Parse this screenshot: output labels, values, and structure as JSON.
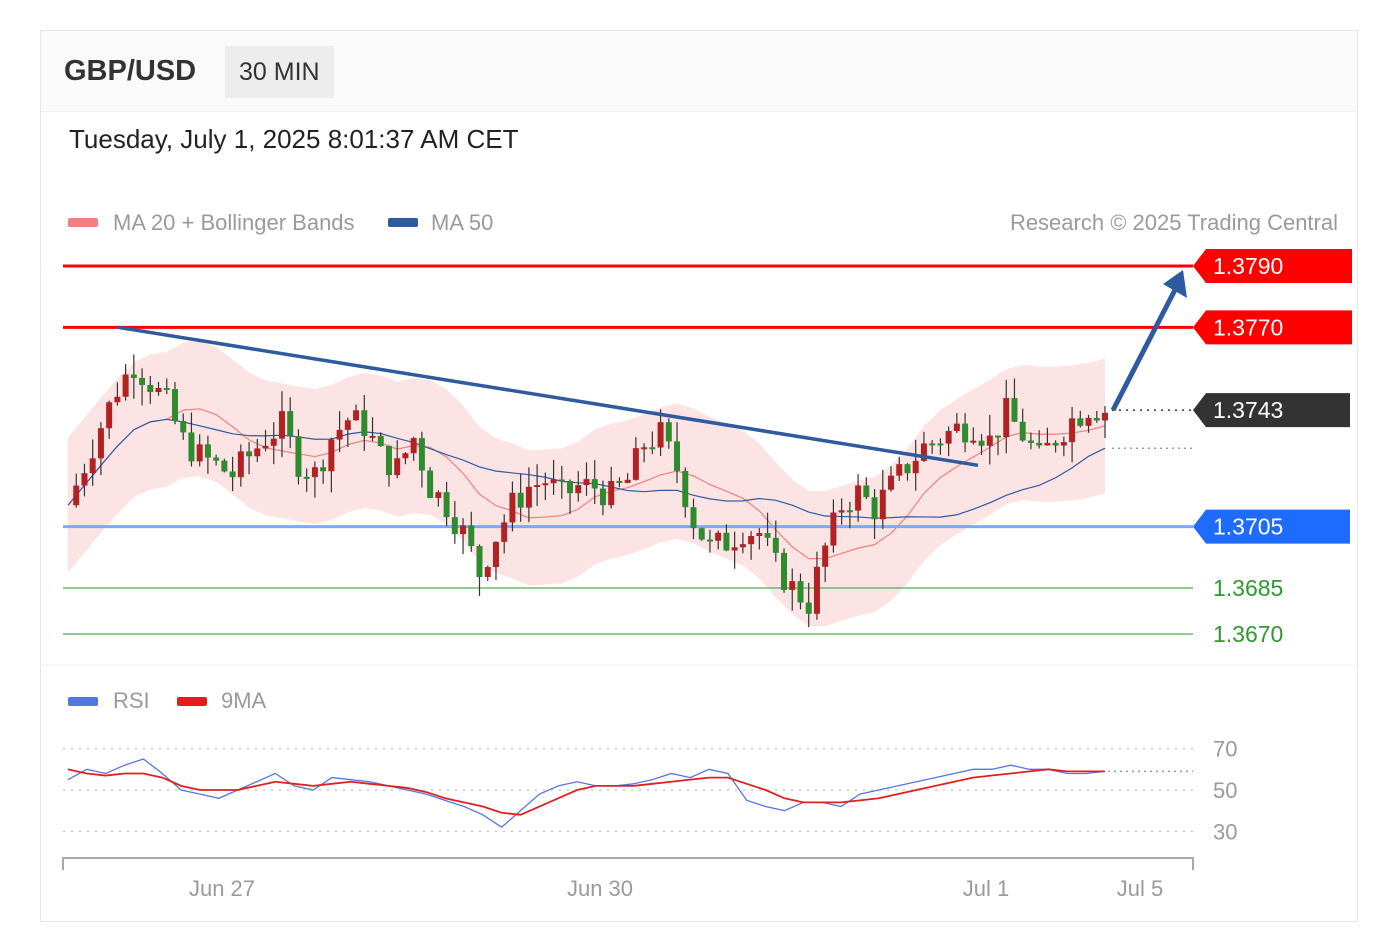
{
  "header": {
    "pair": "GBP/USD",
    "timeframe": "30 MIN"
  },
  "datetime": "Tuesday, July 1, 2025 8:01:37 AM CET",
  "legend": {
    "ma20": {
      "label": "MA 20 + Bollinger Bands",
      "color": "#f08080"
    },
    "ma50": {
      "label": "MA 50",
      "color": "#2e5aa0"
    },
    "credit": "Research © 2025 Trading Central"
  },
  "rsi_legend": {
    "rsi": {
      "label": "RSI",
      "color": "#5577dd"
    },
    "ma9": {
      "label": "9MA",
      "color": "#e02020"
    }
  },
  "colors": {
    "resistance": "#ff0000",
    "support_main": "#1e6cff",
    "support_minor": "#4caf50",
    "last": "#333333",
    "bull": "#2e8b2e",
    "bear": "#b22222",
    "band": "#fde4e4"
  },
  "chart_data": [
    {
      "type": "candlestick",
      "title": "GBP/USD",
      "interval": "30 MIN",
      "y_range": [
        1.3655,
        1.3805
      ],
      "x_ticks": [
        "Jun 27",
        "Jun 30",
        "Jul 1",
        "Jul 5"
      ],
      "levels": [
        {
          "value": "1.3790",
          "kind": "resistance"
        },
        {
          "value": "1.3770",
          "kind": "resistance"
        },
        {
          "value": "1.3743",
          "kind": "last"
        },
        {
          "value": "1.3705",
          "kind": "pivot"
        },
        {
          "value": "1.3685",
          "kind": "support"
        },
        {
          "value": "1.3670",
          "kind": "support"
        }
      ],
      "last_price": 1.3743,
      "trendline": {
        "from": 1.377,
        "to": 1.3725
      },
      "target_arrow": {
        "from": 1.3743,
        "to": 1.379
      },
      "close_series_approx": [
        1.3712,
        1.3725,
        1.3738,
        1.375,
        1.3758,
        1.3752,
        1.3745,
        1.3733,
        1.3728,
        1.3725,
        1.3722,
        1.3728,
        1.3734,
        1.3738,
        1.3726,
        1.3722,
        1.3734,
        1.374,
        1.3738,
        1.3728,
        1.3724,
        1.3734,
        1.3718,
        1.3712,
        1.3703,
        1.369,
        1.3702,
        1.3712,
        1.3718,
        1.372,
        1.3715,
        1.3718,
        1.3718,
        1.3715,
        1.372,
        1.3732,
        1.3735,
        1.3724,
        1.3707,
        1.3698,
        1.37,
        1.3704,
        1.3703,
        1.3692,
        1.3685,
        1.368,
        1.3698,
        1.3712,
        1.3716,
        1.3711,
        1.3718,
        1.3725,
        1.3731,
        1.3734,
        1.3737,
        1.3738,
        1.3733,
        1.3742,
        1.3735,
        1.3727,
        1.3734,
        1.374,
        1.3744,
        1.3743
      ]
    },
    {
      "type": "line",
      "title": "RSI",
      "y_ticks": [
        "70",
        "50",
        "30"
      ],
      "y_range": [
        20,
        80
      ],
      "series": [
        {
          "name": "RSI",
          "values": [
            55,
            60,
            58,
            62,
            65,
            58,
            50,
            48,
            46,
            50,
            54,
            58,
            52,
            50,
            56,
            55,
            54,
            52,
            50,
            48,
            45,
            42,
            38,
            32,
            40,
            48,
            52,
            54,
            52,
            52,
            53,
            55,
            58,
            56,
            60,
            58,
            45,
            42,
            40,
            44,
            44,
            42,
            48,
            50,
            52,
            54,
            56,
            58,
            60,
            60,
            62,
            60,
            60,
            58,
            58,
            59
          ]
        },
        {
          "name": "9MA",
          "values": [
            60,
            58,
            57,
            58,
            58,
            56,
            52,
            50,
            50,
            50,
            52,
            54,
            53,
            52,
            53,
            54,
            53,
            52,
            51,
            49,
            46,
            44,
            42,
            39,
            38,
            42,
            46,
            50,
            52,
            52,
            52,
            53,
            54,
            55,
            56,
            56,
            53,
            50,
            46,
            44,
            44,
            44,
            45,
            46,
            48,
            50,
            52,
            54,
            56,
            57,
            58,
            59,
            60,
            59,
            59,
            59
          ]
        }
      ]
    }
  ]
}
